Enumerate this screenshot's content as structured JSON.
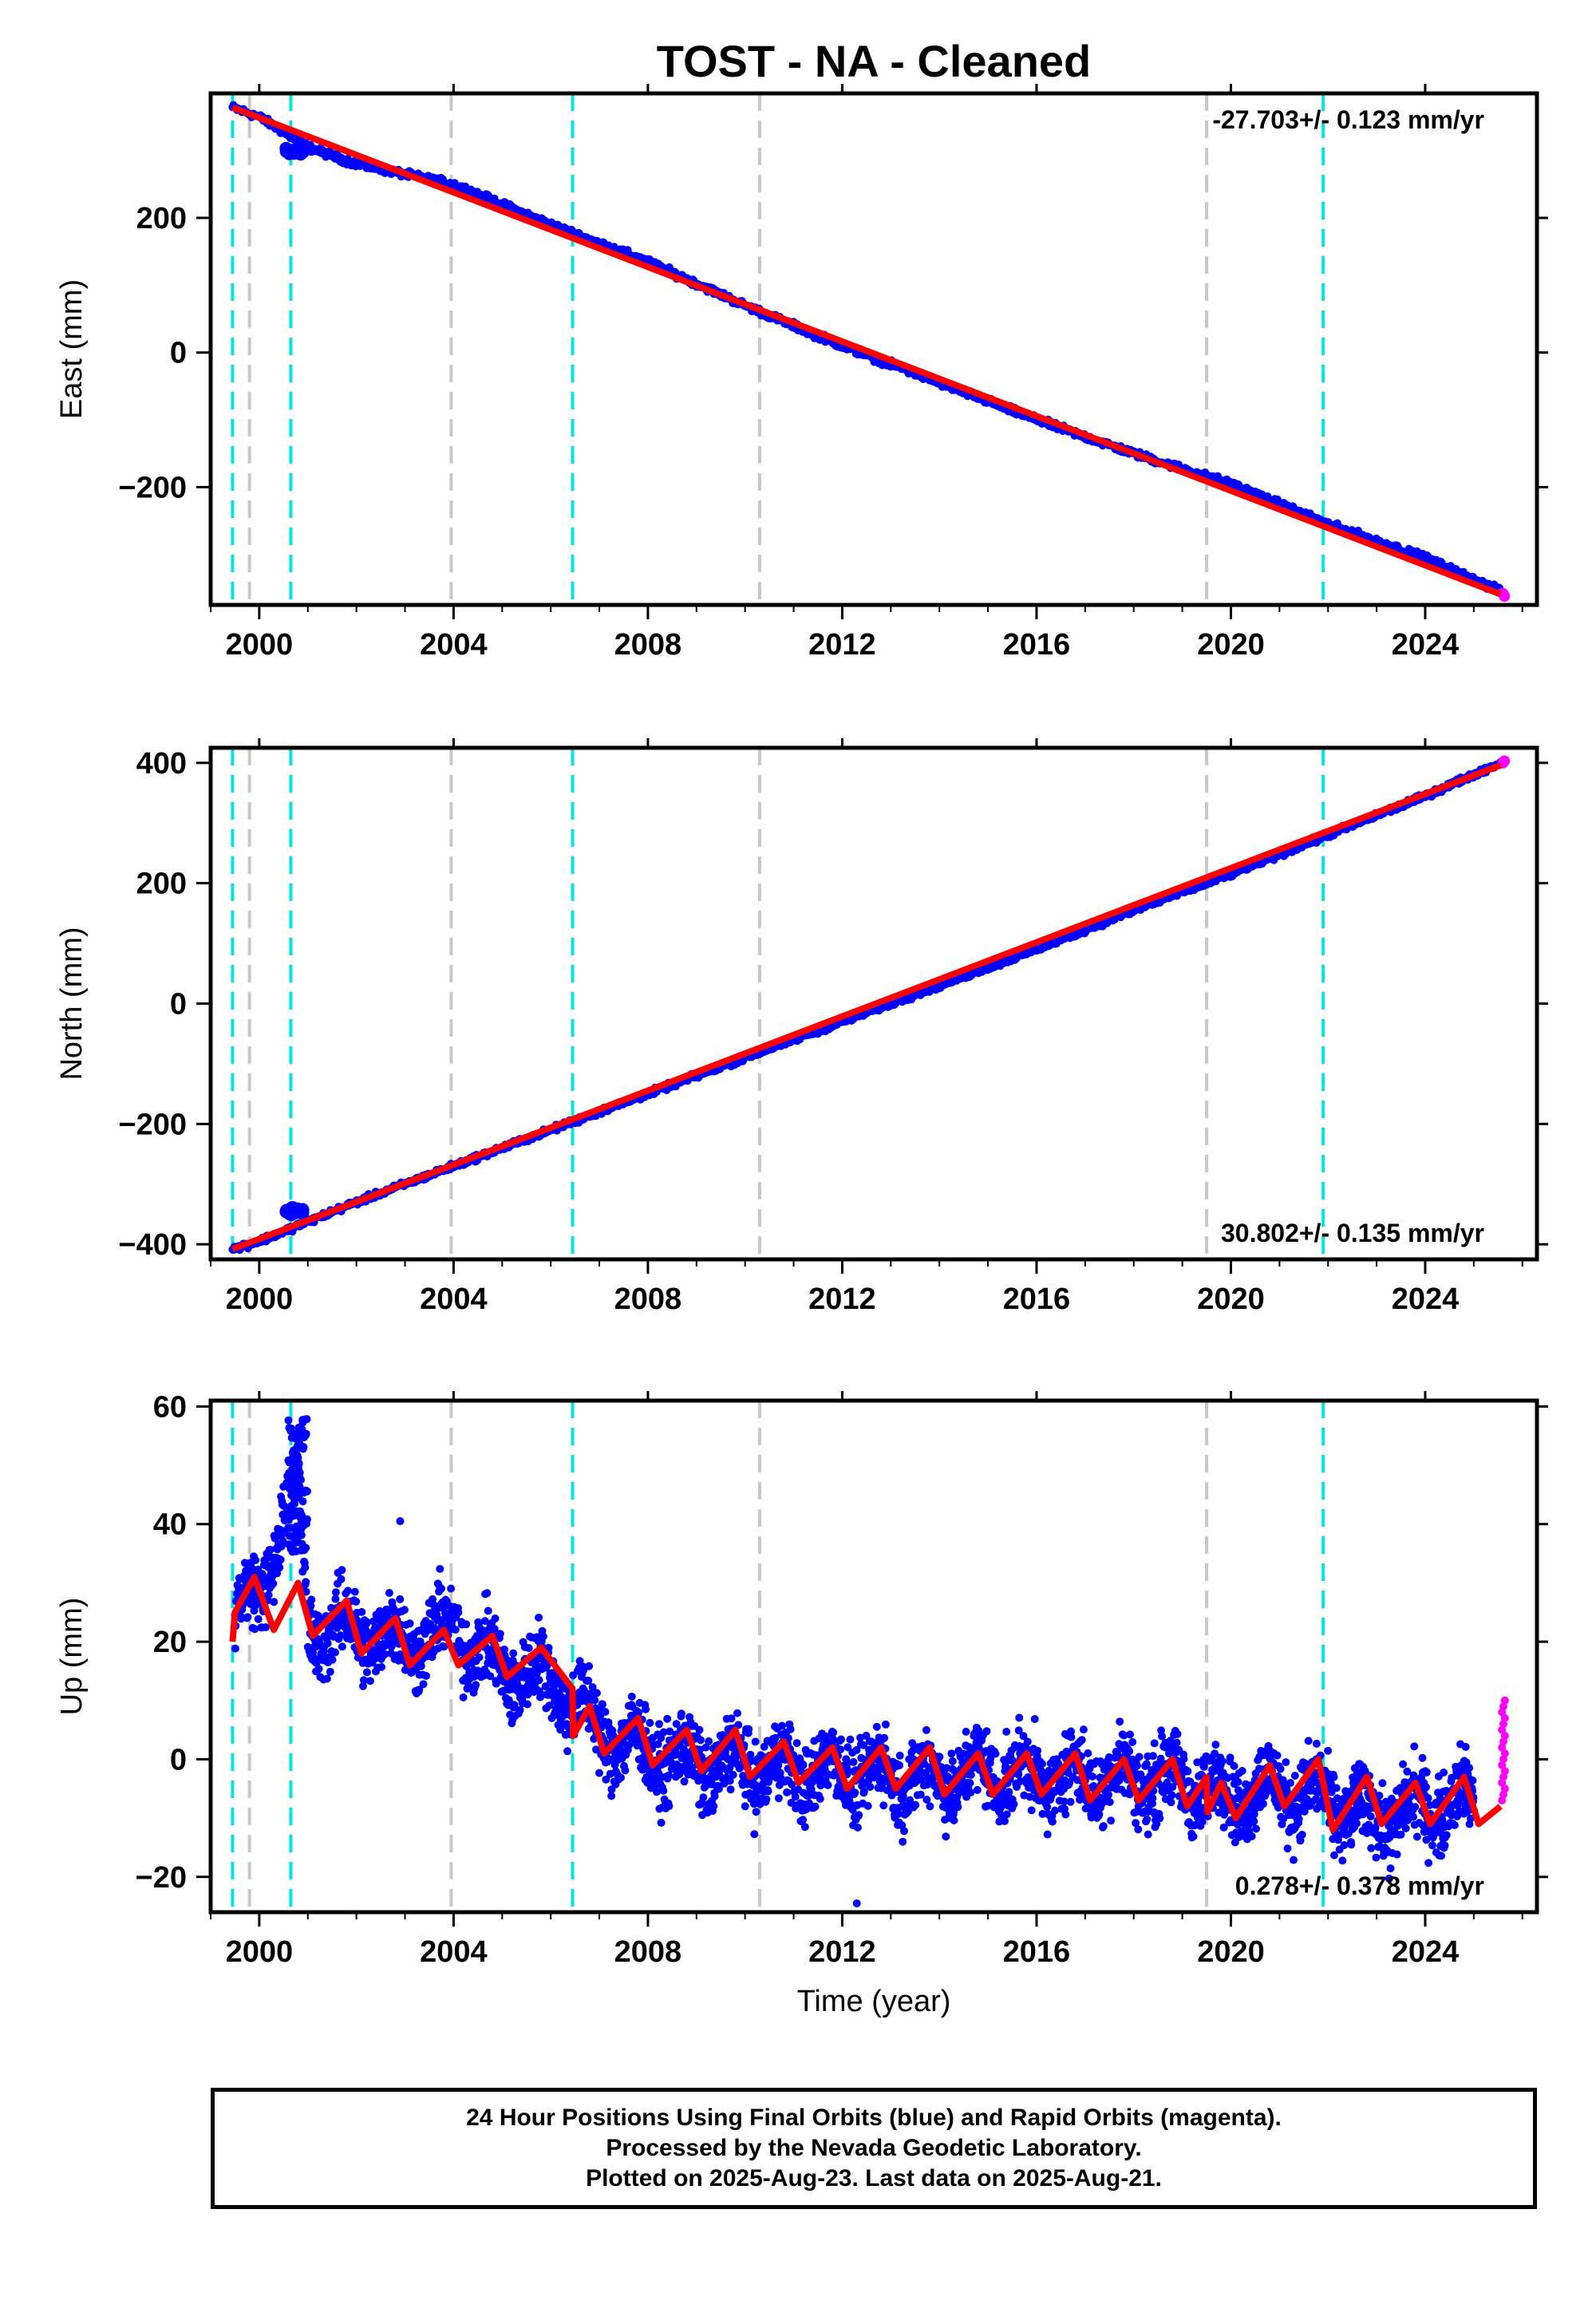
{
  "title": "TOST  - NA - Cleaned",
  "xlabel": "Time (year)",
  "footer": {
    "line1": "24 Hour Positions Using Final Orbits (blue) and Rapid Orbits (magenta).",
    "line2": "Processed by the Nevada Geodetic Laboratory.",
    "line3": "Plotted on 2025-Aug-23. Last data on 2025-Aug-21."
  },
  "colors": {
    "final_orbits": "#0000ff",
    "rapid_orbits": "#ff00ff",
    "model": "#ff0000",
    "equipment_change": "#00e5e5",
    "other_event": "#c8c8c8"
  },
  "chart_data": [
    {
      "type": "scatter",
      "ylabel": "East (mm)",
      "rate_label": "-27.703+/- 0.123 mm/yr",
      "xlim": [
        1999.0,
        2026.3
      ],
      "ylim": [
        -375,
        385
      ],
      "xticks": [
        2000,
        2004,
        2008,
        2012,
        2016,
        2020,
        2024
      ],
      "yticks": [
        -200,
        0,
        200
      ],
      "vlines_cyan": [
        1999.45,
        2000.65,
        2006.45,
        2021.9
      ],
      "vlines_gray": [
        1999.8,
        2003.95,
        2010.3,
        2019.5
      ],
      "series": [
        {
          "name": "Final Orbits",
          "points": [
            [
              1999.45,
              364
            ],
            [
              2000,
              350
            ],
            [
              2001,
              305
            ],
            [
              2002,
              280
            ],
            [
              2004,
              250
            ],
            [
              2006,
              190
            ],
            [
              2008,
              135
            ],
            [
              2010,
              70
            ],
            [
              2012,
              10
            ],
            [
              2014,
              -45
            ],
            [
              2016,
              -100
            ],
            [
              2018,
              -150
            ],
            [
              2020,
              -195
            ],
            [
              2022,
              -255
            ],
            [
              2024,
              -305
            ],
            [
              2025.55,
              -355
            ]
          ]
        },
        {
          "name": "Rapid Orbits",
          "points": [
            [
              2025.6,
              -358
            ],
            [
              2025.63,
              -362
            ]
          ]
        }
      ],
      "model": {
        "x0": 1999.45,
        "y0": 364,
        "rate": -27.703
      }
    },
    {
      "type": "scatter",
      "ylabel": "North (mm)",
      "rate_label": "30.802+/- 0.135 mm/yr",
      "xlim": [
        1999.0,
        2026.3
      ],
      "ylim": [
        -425,
        425
      ],
      "xticks": [
        2000,
        2004,
        2008,
        2012,
        2016,
        2020,
        2024
      ],
      "yticks": [
        -400,
        -200,
        0,
        200,
        400
      ],
      "vlines_cyan": [
        1999.45,
        2000.65,
        2006.45,
        2021.9
      ],
      "vlines_gray": [
        1999.8,
        2003.95,
        2010.3,
        2019.5
      ],
      "series": [
        {
          "name": "Final Orbits",
          "points": [
            [
              1999.45,
              -408
            ],
            [
              2000,
              -395
            ],
            [
              2002,
              -330
            ],
            [
              2004,
              -270
            ],
            [
              2006,
              -210
            ],
            [
              2008,
              -150
            ],
            [
              2010,
              -90
            ],
            [
              2012,
              -30
            ],
            [
              2014,
              30
            ],
            [
              2016,
              90
            ],
            [
              2018,
              155
            ],
            [
              2020,
              215
            ],
            [
              2022,
              280
            ],
            [
              2024,
              345
            ],
            [
              2025.55,
              400
            ]
          ]
        },
        {
          "name": "Rapid Orbits",
          "points": [
            [
              2025.6,
              400
            ],
            [
              2025.63,
              403
            ]
          ]
        }
      ],
      "model": {
        "x0": 1999.45,
        "y0": -408,
        "rate": 30.802
      }
    },
    {
      "type": "scatter",
      "ylabel": "Up (mm)",
      "rate_label": "0.278+/- 0.378 mm/yr",
      "xlim": [
        1999.0,
        2026.3
      ],
      "ylim": [
        -26,
        61
      ],
      "xticks": [
        2000,
        2004,
        2008,
        2012,
        2016,
        2020,
        2024
      ],
      "yticks": [
        -20,
        0,
        20,
        40,
        60
      ],
      "vlines_cyan": [
        1999.45,
        2000.65,
        2006.45,
        2021.9
      ],
      "vlines_gray": [
        1999.8,
        2003.95,
        2010.3,
        2019.5
      ],
      "series": [
        {
          "name": "Final Orbits",
          "points": [
            [
              1999.5,
              25
            ],
            [
              2000,
              28
            ],
            [
              2000.8,
              48
            ],
            [
              2001,
              22
            ],
            [
              2002,
              22
            ],
            [
              2003,
              20
            ],
            [
              2004,
              22
            ],
            [
              2005,
              15
            ],
            [
              2006,
              14
            ],
            [
              2007,
              5
            ],
            [
              2008,
              1
            ],
            [
              2009,
              -1
            ],
            [
              2010,
              -1
            ],
            [
              2011,
              -2
            ],
            [
              2012,
              -2
            ],
            [
              2013,
              -3
            ],
            [
              2014,
              -3
            ],
            [
              2015,
              -2
            ],
            [
              2016,
              -3
            ],
            [
              2017,
              -3
            ],
            [
              2018,
              -3
            ],
            [
              2019,
              -4
            ],
            [
              2020,
              -6
            ],
            [
              2021,
              -5
            ],
            [
              2022,
              -7
            ],
            [
              2023,
              -10
            ],
            [
              2024,
              -8
            ],
            [
              2025,
              -7
            ]
          ]
        },
        {
          "name": "Rapid Orbits",
          "points": [
            [
              2025.6,
              -5
            ],
            [
              2025.62,
              0
            ],
            [
              2025.64,
              5
            ],
            [
              2025.66,
              10
            ]
          ]
        }
      ],
      "model_points": [
        [
          1999.45,
          20
        ],
        [
          1999.5,
          25
        ],
        [
          1999.9,
          31
        ],
        [
          2000.3,
          22
        ],
        [
          2000.8,
          30
        ],
        [
          2001.1,
          21
        ],
        [
          2001.8,
          27
        ],
        [
          2002.1,
          18
        ],
        [
          2002.8,
          24
        ],
        [
          2003.1,
          16
        ],
        [
          2003.8,
          22
        ],
        [
          2004.1,
          16
        ],
        [
          2004.8,
          21
        ],
        [
          2005.1,
          14
        ],
        [
          2005.8,
          19
        ],
        [
          2006.45,
          12
        ],
        [
          2006.46,
          4
        ],
        [
          2006.8,
          9
        ],
        [
          2007.1,
          1
        ],
        [
          2007.8,
          7
        ],
        [
          2008.1,
          -1
        ],
        [
          2008.8,
          5
        ],
        [
          2009.1,
          -2
        ],
        [
          2009.8,
          5
        ],
        [
          2010.1,
          -3
        ],
        [
          2010.8,
          3
        ],
        [
          2011.1,
          -4
        ],
        [
          2011.8,
          2
        ],
        [
          2012.1,
          -5
        ],
        [
          2012.8,
          2
        ],
        [
          2013.1,
          -5
        ],
        [
          2013.8,
          2
        ],
        [
          2014.1,
          -6
        ],
        [
          2014.8,
          1
        ],
        [
          2015.1,
          -6
        ],
        [
          2015.8,
          1
        ],
        [
          2016.1,
          -6
        ],
        [
          2016.8,
          1
        ],
        [
          2017.1,
          -7
        ],
        [
          2017.8,
          0
        ],
        [
          2018.1,
          -7
        ],
        [
          2018.8,
          0
        ],
        [
          2019.1,
          -8
        ],
        [
          2019.5,
          -3
        ],
        [
          2019.52,
          -9
        ],
        [
          2019.8,
          -4
        ],
        [
          2020.1,
          -10
        ],
        [
          2020.8,
          -1
        ],
        [
          2021.1,
          -8
        ],
        [
          2021.8,
          0
        ],
        [
          2022.1,
          -12
        ],
        [
          2022.8,
          -3
        ],
        [
          2023.1,
          -11
        ],
        [
          2023.8,
          -4
        ],
        [
          2024.1,
          -11
        ],
        [
          2024.8,
          -3
        ],
        [
          2025.1,
          -11
        ],
        [
          2025.55,
          -8
        ]
      ]
    }
  ]
}
